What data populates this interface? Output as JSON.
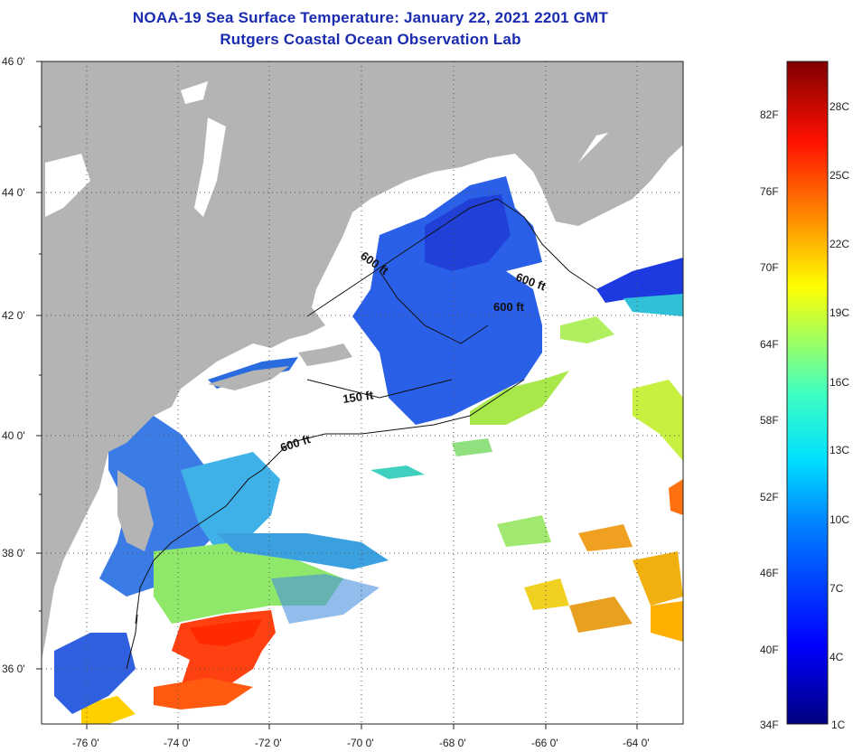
{
  "title": "NOAA-19 Sea Surface Temperature:  January 22, 2021 2201 GMT",
  "subtitle": "Rutgers Coastal Ocean Observation Lab",
  "lat_ticks": [
    "46 0'",
    "44 0'",
    "42 0'",
    "40 0'",
    "38 0'",
    "36 0'"
  ],
  "lon_ticks": [
    "-76 0'",
    "-74 0'",
    "-72 0'",
    "-70 0'",
    "-68 0'",
    "-66 0'",
    "-64 0'"
  ],
  "contours": [
    "600 ft",
    "600 ft",
    "600 ft",
    "150 ft",
    "600 ft"
  ],
  "colorbar": {
    "fahrenheit": [
      "82F",
      "76F",
      "70F",
      "64F",
      "58F",
      "52F",
      "46F",
      "40F",
      "34F"
    ],
    "celsius": [
      "28C",
      "25C",
      "22C",
      "19C",
      "16C",
      "13C",
      "10C",
      "7C",
      "4C",
      "1C"
    ]
  },
  "colors": {
    "title": "#1a2bb0",
    "land": "#b4b4b4",
    "cloud": "#ffffff"
  }
}
